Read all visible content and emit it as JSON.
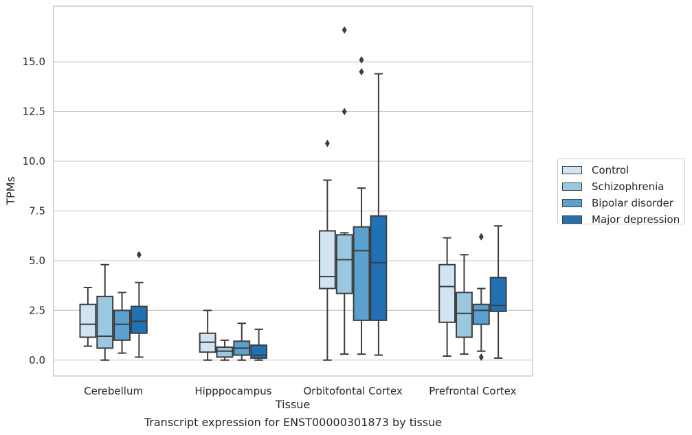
{
  "chart_data": {
    "type": "box",
    "title": "",
    "caption": "Transcript expression for ENST00000301873 by tissue",
    "xlabel": "Tissue",
    "ylabel": "TPMs",
    "ylim": [
      -0.8,
      17.8
    ],
    "yticks": [
      "0.0",
      "2.5",
      "5.0",
      "7.5",
      "10.0",
      "12.5",
      "15.0"
    ],
    "grid": true,
    "legend_position": "right",
    "categories": [
      "Cerebellum",
      "Hipppocampus",
      "Orbitofontal Cortex",
      "Prefrontal Cortex"
    ],
    "series": [
      {
        "name": "Control",
        "color": "#d2e3f3",
        "boxes": [
          {
            "whislo": 0.7,
            "q1": 1.15,
            "med": 1.8,
            "q3": 2.8,
            "whishi": 3.65,
            "fliers": []
          },
          {
            "whislo": 0.0,
            "q1": 0.4,
            "med": 0.9,
            "q3": 1.35,
            "whishi": 2.5,
            "fliers": []
          },
          {
            "whislo": 0.0,
            "q1": 3.6,
            "med": 4.2,
            "q3": 6.5,
            "whishi": 9.05,
            "fliers": [
              10.9
            ]
          },
          {
            "whislo": 0.2,
            "q1": 1.9,
            "med": 3.7,
            "q3": 4.8,
            "whishi": 6.15,
            "fliers": []
          }
        ]
      },
      {
        "name": "Schizophrenia",
        "color": "#9ac8e0",
        "boxes": [
          {
            "whislo": 0.0,
            "q1": 0.6,
            "med": 1.2,
            "q3": 3.2,
            "whishi": 4.8,
            "fliers": []
          },
          {
            "whislo": 0.0,
            "q1": 0.15,
            "med": 0.45,
            "q3": 0.65,
            "whishi": 1.0,
            "fliers": []
          },
          {
            "whislo": 0.3,
            "q1": 3.35,
            "med": 5.05,
            "q3": 6.3,
            "whishi": 6.4,
            "fliers": [
              12.5,
              16.6
            ]
          },
          {
            "whislo": 0.3,
            "q1": 1.15,
            "med": 2.35,
            "q3": 3.4,
            "whishi": 5.3,
            "fliers": []
          }
        ]
      },
      {
        "name": "Bipolar disorder",
        "color": "#5aa1cf",
        "boxes": [
          {
            "whislo": 0.35,
            "q1": 1.0,
            "med": 1.8,
            "q3": 2.5,
            "whishi": 3.4,
            "fliers": []
          },
          {
            "whislo": 0.0,
            "q1": 0.25,
            "med": 0.6,
            "q3": 0.95,
            "whishi": 1.85,
            "fliers": []
          },
          {
            "whislo": 0.3,
            "q1": 2.0,
            "med": 5.5,
            "q3": 6.7,
            "whishi": 8.65,
            "fliers": [
              14.5,
              15.1
            ]
          },
          {
            "whislo": 0.45,
            "q1": 1.8,
            "med": 2.5,
            "q3": 2.8,
            "whishi": 3.6,
            "fliers": [
              0.15,
              6.2
            ]
          }
        ]
      },
      {
        "name": "Major depression",
        "color": "#2171b5",
        "boxes": [
          {
            "whislo": 0.15,
            "q1": 1.35,
            "med": 1.95,
            "q3": 2.7,
            "whishi": 3.9,
            "fliers": [
              5.3
            ]
          },
          {
            "whislo": 0.0,
            "q1": 0.1,
            "med": 0.25,
            "q3": 0.75,
            "whishi": 1.55,
            "fliers": []
          },
          {
            "whislo": 0.25,
            "q1": 2.0,
            "med": 4.9,
            "q3": 7.25,
            "whishi": 14.4,
            "fliers": []
          },
          {
            "whislo": 0.1,
            "q1": 2.45,
            "med": 2.75,
            "q3": 4.15,
            "whishi": 6.75,
            "fliers": []
          }
        ]
      }
    ]
  }
}
